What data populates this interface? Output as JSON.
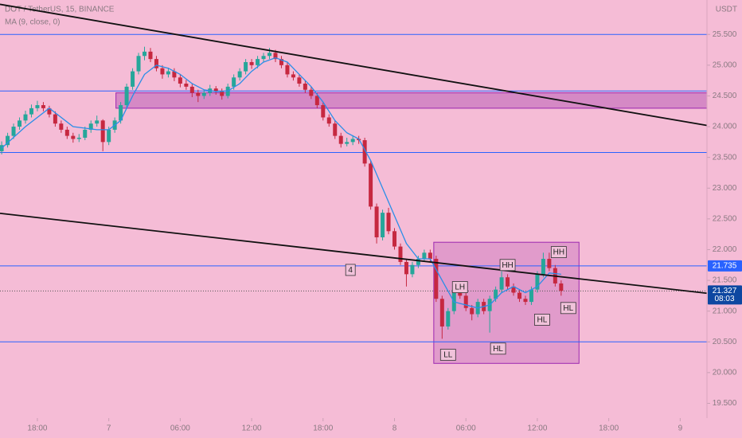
{
  "chart_data": {
    "type": "candlestick",
    "title": "DOT / TetherUS, 15, BINANCE",
    "indicator": "MA (9, close, 0)",
    "currency": "USDT",
    "up_color": "#26a69a",
    "down_color": "#c62840",
    "background": "#f5bcd6",
    "xlim": [
      -3.14,
      56.25
    ],
    "ylim": [
      19.26,
      26.06
    ],
    "xticks": [
      {
        "value": 0,
        "label": "18:00"
      },
      {
        "value": 6,
        "label": "7"
      },
      {
        "value": 12,
        "label": "06:00"
      },
      {
        "value": 18,
        "label": "12:00"
      },
      {
        "value": 24,
        "label": "18:00"
      },
      {
        "value": 30,
        "label": "8"
      },
      {
        "value": 36,
        "label": "06:00"
      },
      {
        "value": 42,
        "label": "12:00"
      },
      {
        "value": 48,
        "label": "18:00"
      },
      {
        "value": 54,
        "label": "9"
      }
    ],
    "yticks": [
      {
        "value": 19.5,
        "label": "19.500"
      },
      {
        "value": 20,
        "label": "20.000"
      },
      {
        "value": 20.5,
        "label": "20.500"
      },
      {
        "value": 21,
        "label": "21.000"
      },
      {
        "value": 21.5,
        "label": "21.500"
      },
      {
        "value": 22,
        "label": "22.000"
      },
      {
        "value": 22.5,
        "label": "22.500"
      },
      {
        "value": 23,
        "label": "23.000"
      },
      {
        "value": 23.5,
        "label": "23.500"
      },
      {
        "value": 24,
        "label": "24.000"
      },
      {
        "value": 24.5,
        "label": "24.500"
      },
      {
        "value": 25,
        "label": "25.000"
      },
      {
        "value": 25.5,
        "label": "25.500"
      }
    ],
    "x": [
      -3,
      -2.5,
      -2,
      -1.5,
      -1,
      -0.5,
      0,
      0.5,
      1,
      1.5,
      2,
      2.5,
      3,
      3.5,
      4,
      4.5,
      5,
      5.5,
      6,
      6.5,
      7,
      7.5,
      8,
      8.5,
      9,
      9.5,
      10,
      10.5,
      11,
      11.5,
      12,
      12.5,
      13,
      13.5,
      14,
      14.5,
      15,
      15.5,
      16,
      16.5,
      17,
      17.5,
      18,
      18.5,
      19,
      19.5,
      20,
      20.5,
      21,
      21.5,
      22,
      22.5,
      23,
      23.5,
      24,
      24.5,
      25,
      25.5,
      26,
      26.5,
      27,
      27.5,
      28,
      28.5,
      29,
      29.5,
      30,
      30.5,
      31,
      31.5,
      32,
      32.5,
      33,
      33.5,
      34,
      34.5,
      35,
      35.5,
      36,
      36.5,
      37,
      37.5,
      38,
      38.5,
      39,
      39.5,
      40,
      40.5,
      41,
      41.5,
      42,
      42.5,
      43,
      43.5,
      44
    ],
    "ohlc": [
      [
        23.6,
        23.76,
        23.55,
        23.7
      ],
      [
        23.7,
        23.9,
        23.66,
        23.85
      ],
      [
        23.85,
        24.05,
        23.8,
        24.0
      ],
      [
        24.0,
        24.15,
        23.95,
        24.1
      ],
      [
        24.1,
        24.26,
        24.05,
        24.2
      ],
      [
        24.2,
        24.36,
        24.15,
        24.3
      ],
      [
        24.3,
        24.42,
        24.25,
        24.35
      ],
      [
        24.35,
        24.4,
        24.25,
        24.3
      ],
      [
        24.3,
        24.34,
        24.15,
        24.2
      ],
      [
        24.2,
        24.25,
        24.0,
        24.05
      ],
      [
        24.05,
        24.1,
        23.9,
        23.95
      ],
      [
        23.95,
        24.0,
        23.8,
        23.85
      ],
      [
        23.85,
        23.9,
        23.74,
        23.8
      ],
      [
        23.8,
        23.88,
        23.75,
        23.82
      ],
      [
        23.82,
        24.0,
        23.78,
        23.95
      ],
      [
        23.95,
        24.1,
        23.9,
        24.05
      ],
      [
        24.05,
        24.18,
        24.0,
        24.1
      ],
      [
        24.1,
        24.12,
        23.6,
        23.75
      ],
      [
        23.75,
        24.0,
        23.7,
        23.95
      ],
      [
        23.95,
        24.15,
        23.9,
        24.1
      ],
      [
        24.1,
        24.4,
        24.05,
        24.35
      ],
      [
        24.35,
        24.7,
        24.3,
        24.65
      ],
      [
        24.65,
        24.95,
        24.6,
        24.9
      ],
      [
        24.9,
        25.2,
        24.85,
        25.15
      ],
      [
        25.15,
        25.3,
        25.08,
        25.22
      ],
      [
        25.22,
        25.28,
        25.05,
        25.1
      ],
      [
        25.1,
        25.15,
        24.9,
        24.95
      ],
      [
        24.95,
        25.0,
        24.78,
        24.85
      ],
      [
        24.85,
        24.96,
        24.8,
        24.9
      ],
      [
        24.9,
        24.95,
        24.74,
        24.8
      ],
      [
        24.8,
        24.85,
        24.64,
        24.7
      ],
      [
        24.7,
        24.76,
        24.6,
        24.65
      ],
      [
        24.65,
        24.7,
        24.48,
        24.55
      ],
      [
        24.55,
        24.6,
        24.4,
        24.5
      ],
      [
        24.5,
        24.6,
        24.45,
        24.55
      ],
      [
        24.55,
        24.68,
        24.5,
        24.62
      ],
      [
        24.62,
        24.66,
        24.52,
        24.58
      ],
      [
        24.58,
        24.62,
        24.44,
        24.5
      ],
      [
        24.5,
        24.7,
        24.46,
        24.65
      ],
      [
        24.65,
        24.85,
        24.6,
        24.8
      ],
      [
        24.8,
        24.95,
        24.75,
        24.9
      ],
      [
        24.9,
        25.1,
        24.85,
        25.05
      ],
      [
        25.05,
        25.1,
        24.94,
        25.0
      ],
      [
        25.0,
        25.15,
        24.95,
        25.1
      ],
      [
        25.1,
        25.2,
        25.05,
        25.15
      ],
      [
        25.15,
        25.28,
        25.1,
        25.2
      ],
      [
        25.2,
        25.25,
        25.05,
        25.1
      ],
      [
        25.1,
        25.15,
        24.95,
        25.0
      ],
      [
        25.0,
        25.05,
        24.8,
        24.85
      ],
      [
        24.85,
        24.9,
        24.75,
        24.8
      ],
      [
        24.8,
        24.85,
        24.65,
        24.7
      ],
      [
        24.7,
        24.75,
        24.55,
        24.6
      ],
      [
        24.6,
        24.65,
        24.45,
        24.5
      ],
      [
        24.5,
        24.55,
        24.3,
        24.35
      ],
      [
        24.35,
        24.4,
        24.1,
        24.15
      ],
      [
        24.15,
        24.2,
        24.0,
        24.05
      ],
      [
        24.05,
        24.1,
        23.8,
        23.85
      ],
      [
        23.85,
        23.9,
        23.66,
        23.72
      ],
      [
        23.72,
        23.82,
        23.68,
        23.75
      ],
      [
        23.75,
        23.86,
        23.7,
        23.8
      ],
      [
        23.8,
        23.85,
        23.72,
        23.78
      ],
      [
        23.78,
        23.82,
        23.35,
        23.4
      ],
      [
        23.4,
        23.45,
        22.65,
        22.7
      ],
      [
        22.7,
        22.75,
        22.1,
        22.2
      ],
      [
        22.2,
        22.65,
        22.15,
        22.6
      ],
      [
        22.6,
        22.68,
        22.25,
        22.3
      ],
      [
        22.3,
        22.35,
        22.0,
        22.05
      ],
      [
        22.05,
        22.1,
        21.75,
        21.8
      ],
      [
        21.8,
        21.85,
        21.4,
        21.6
      ],
      [
        21.6,
        21.8,
        21.55,
        21.75
      ],
      [
        21.75,
        21.9,
        21.7,
        21.85
      ],
      [
        21.85,
        22.0,
        21.8,
        21.95
      ],
      [
        21.95,
        22.0,
        21.8,
        21.85
      ],
      [
        21.85,
        21.9,
        21.15,
        21.2
      ],
      [
        21.2,
        21.25,
        20.55,
        20.75
      ],
      [
        20.75,
        21.05,
        20.7,
        21.0
      ],
      [
        21.0,
        21.4,
        20.95,
        21.35
      ],
      [
        21.35,
        21.4,
        21.2,
        21.25
      ],
      [
        21.25,
        21.3,
        21.0,
        21.05
      ],
      [
        21.05,
        21.1,
        20.85,
        20.95
      ],
      [
        20.95,
        21.2,
        20.9,
        21.15
      ],
      [
        21.15,
        21.2,
        20.95,
        21.0
      ],
      [
        21.0,
        21.25,
        20.65,
        21.2
      ],
      [
        21.2,
        21.4,
        21.15,
        21.35
      ],
      [
        21.35,
        21.65,
        21.3,
        21.55
      ],
      [
        21.55,
        21.6,
        21.35,
        21.4
      ],
      [
        21.4,
        21.45,
        21.25,
        21.3
      ],
      [
        21.3,
        21.35,
        21.15,
        21.2
      ],
      [
        21.2,
        21.25,
        21.1,
        21.15
      ],
      [
        21.15,
        21.4,
        21.1,
        21.35
      ],
      [
        21.35,
        21.65,
        21.3,
        21.6
      ],
      [
        21.6,
        21.95,
        21.55,
        21.85
      ],
      [
        21.85,
        21.95,
        21.65,
        21.7
      ],
      [
        21.7,
        21.75,
        21.4,
        21.45
      ],
      [
        21.45,
        21.5,
        21.25,
        21.33
      ]
    ],
    "ma": {
      "color": "#2a8ee8",
      "x": [
        -3,
        -1,
        1,
        3,
        5,
        6,
        7,
        8,
        9,
        10,
        11,
        12,
        13,
        14,
        15,
        16,
        17,
        18,
        19,
        20,
        21,
        22,
        23,
        24,
        25,
        26,
        27,
        28,
        29,
        30,
        31,
        32,
        33,
        34,
        35,
        36,
        37,
        38,
        39,
        40,
        41,
        42,
        43,
        44
      ],
      "values": [
        23.65,
        24.0,
        24.3,
        24.0,
        23.95,
        23.95,
        24.1,
        24.5,
        24.85,
        25.0,
        24.95,
        24.85,
        24.7,
        24.6,
        24.57,
        24.58,
        24.7,
        24.9,
        25.05,
        25.12,
        25.05,
        24.85,
        24.65,
        24.4,
        24.1,
        23.9,
        23.8,
        23.45,
        23.0,
        22.55,
        22.1,
        21.85,
        21.85,
        21.5,
        21.15,
        21.1,
        21.05,
        21.1,
        21.3,
        21.4,
        21.3,
        21.4,
        21.62,
        21.6
      ]
    },
    "levels": {
      "color": "#2962ff",
      "values": [
        25.5,
        24.58,
        23.58,
        21.735,
        20.5
      ]
    },
    "zones": [
      {
        "x": [
          6.6,
          56.25
        ],
        "y": [
          24.3,
          24.55
        ],
        "color": "#c873bd"
      },
      {
        "x": [
          33.3,
          45.5
        ],
        "y": [
          20.15,
          22.12
        ],
        "color": "#d88dc6"
      }
    ],
    "trendlines": [
      {
        "x": [
          -3.14,
          56.25
        ],
        "y": [
          25.99,
          24.02
        ]
      },
      {
        "x": [
          -3.14,
          56.25
        ],
        "y": [
          22.59,
          21.29
        ]
      }
    ],
    "annotations": [
      {
        "text": "4",
        "x": 26.3,
        "y": 21.67
      },
      {
        "text": "LH",
        "x": 35.5,
        "y": 21.39
      },
      {
        "text": "HH",
        "x": 39.5,
        "y": 21.75
      },
      {
        "text": "HH",
        "x": 43.8,
        "y": 21.96
      },
      {
        "text": "HL",
        "x": 44.6,
        "y": 21.05
      },
      {
        "text": "HL",
        "x": 42.4,
        "y": 20.86
      },
      {
        "text": "HL",
        "x": 38.7,
        "y": 20.39
      },
      {
        "text": "LL",
        "x": 34.5,
        "y": 20.29
      }
    ],
    "price_tags": [
      {
        "value": 21.735,
        "label": "21.735",
        "color": "#2962ff"
      },
      {
        "value": 21.327,
        "label": "21.327",
        "sub": "08:03",
        "color": "#0d47a1"
      }
    ]
  }
}
